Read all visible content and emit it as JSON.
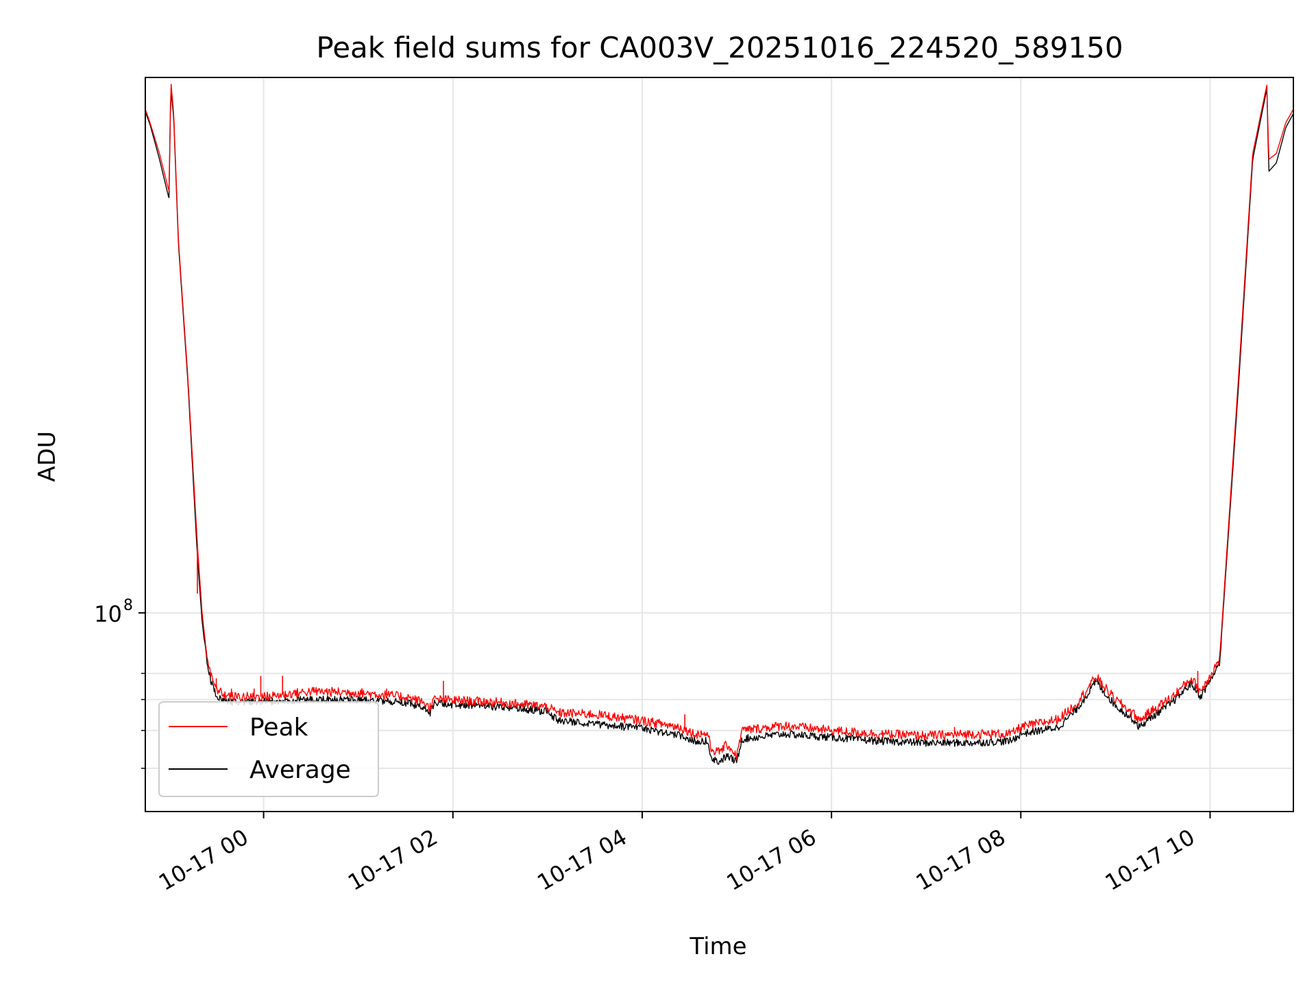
{
  "chart_data": {
    "type": "line",
    "title": "Peak field sums for CA003V_20251016_224520_589150",
    "xlabel": "Time",
    "ylabel": "ADU",
    "yscale": "log",
    "ylim": [
      31000000.0,
      2350000000.0
    ],
    "xlim_hours": [
      -1.25,
      10.88
    ],
    "grid": true,
    "legend_position": "lower-left",
    "x_ticks": [
      {
        "hour": 0,
        "label": "10-17 00"
      },
      {
        "hour": 2,
        "label": "10-17 02"
      },
      {
        "hour": 4,
        "label": "10-17 04"
      },
      {
        "hour": 6,
        "label": "10-17 06"
      },
      {
        "hour": 8,
        "label": "10-17 08"
      },
      {
        "hour": 10,
        "label": "10-17 10"
      }
    ],
    "y_ticks": [
      {
        "value": 100000000,
        "base": "10",
        "exponent": "8"
      }
    ],
    "y_minor_ticks": [
      40000000,
      50000000,
      60000000,
      70000000
    ],
    "series": [
      {
        "name": "Peak",
        "color": "#ff0000",
        "points": [
          [
            -1.25,
            1950000000.0
          ],
          [
            -1.2,
            1800000000.0
          ],
          [
            -1.1,
            1500000000.0
          ],
          [
            -1.0,
            1200000000.0
          ],
          [
            -0.98,
            2300000000.0
          ],
          [
            -0.95,
            1900000000.0
          ],
          [
            -0.9,
            900000000.0
          ],
          [
            -0.8,
            400000000.0
          ],
          [
            -0.7,
            150000000.0
          ],
          [
            -0.65,
            100000000.0
          ],
          [
            -0.6,
            78000000.0
          ],
          [
            -0.55,
            68000000.0
          ],
          [
            -0.5,
            64000000.0
          ],
          [
            -0.45,
            62500000.0
          ],
          [
            -0.4,
            61500000.0
          ],
          [
            -0.3,
            61000000.0
          ],
          [
            -0.2,
            61000000.0
          ],
          [
            0.0,
            61000000.0
          ],
          [
            0.5,
            63000000.0
          ],
          [
            1.0,
            62500000.0
          ],
          [
            1.5,
            61000000.0
          ],
          [
            1.7,
            59000000.0
          ],
          [
            1.75,
            57000000.0
          ],
          [
            1.8,
            60000000.0
          ],
          [
            1.85,
            60000000.0
          ],
          [
            2.5,
            59000000.0
          ],
          [
            3.0,
            57500000.0
          ],
          [
            3.1,
            55500000.0
          ],
          [
            3.5,
            55000000.0
          ],
          [
            4.0,
            53000000.0
          ],
          [
            4.4,
            51000000.0
          ],
          [
            4.55,
            49000000.0
          ],
          [
            4.7,
            49000000.0
          ],
          [
            4.72,
            45000000.0
          ],
          [
            4.8,
            44000000.0
          ],
          [
            4.9,
            46000000.0
          ],
          [
            5.0,
            43000000.0
          ],
          [
            5.05,
            50000000.0
          ],
          [
            5.5,
            51500000.0
          ],
          [
            6.0,
            50000000.0
          ],
          [
            6.5,
            49000000.0
          ],
          [
            7.0,
            48500000.0
          ],
          [
            7.5,
            49000000.0
          ],
          [
            7.9,
            49000000.0
          ],
          [
            8.0,
            51000000.0
          ],
          [
            8.4,
            53500000.0
          ],
          [
            8.6,
            59000000.0
          ],
          [
            8.8,
            69000000.0
          ],
          [
            8.85,
            66000000.0
          ],
          [
            9.0,
            60000000.0
          ],
          [
            9.2,
            55000000.0
          ],
          [
            9.25,
            53000000.0
          ],
          [
            9.4,
            56500000.0
          ],
          [
            9.6,
            61000000.0
          ],
          [
            9.8,
            68000000.0
          ],
          [
            9.9,
            63000000.0
          ],
          [
            9.95,
            66000000.0
          ],
          [
            10.1,
            76000000.0
          ],
          [
            10.3,
            400000000.0
          ],
          [
            10.45,
            1500000000.0
          ],
          [
            10.6,
            2250000000.0
          ],
          [
            10.62,
            1450000000.0
          ],
          [
            10.7,
            1500000000.0
          ],
          [
            10.8,
            1800000000.0
          ],
          [
            10.88,
            1950000000.0
          ]
        ]
      },
      {
        "name": "Average",
        "color": "#000000",
        "points": [
          [
            -1.25,
            1920000000.0
          ],
          [
            -1.2,
            1780000000.0
          ],
          [
            -1.1,
            1450000000.0
          ],
          [
            -1.0,
            1150000000.0
          ],
          [
            -0.98,
            2200000000.0
          ],
          [
            -0.95,
            1850000000.0
          ],
          [
            -0.9,
            880000000.0
          ],
          [
            -0.8,
            390000000.0
          ],
          [
            -0.7,
            140000000.0
          ],
          [
            -0.65,
            95000000.0
          ],
          [
            -0.6,
            75000000.0
          ],
          [
            -0.55,
            66000000.0
          ],
          [
            -0.5,
            61500000.0
          ],
          [
            -0.45,
            60000000.0
          ],
          [
            -0.4,
            59500000.0
          ],
          [
            -0.3,
            59200000.0
          ],
          [
            -0.2,
            59200000.0
          ],
          [
            0.0,
            59300000.0
          ],
          [
            0.5,
            60000000.0
          ],
          [
            1.0,
            60000000.0
          ],
          [
            1.5,
            59000000.0
          ],
          [
            1.7,
            57000000.0
          ],
          [
            1.75,
            55000000.0
          ],
          [
            1.8,
            58500000.0
          ],
          [
            1.85,
            58500000.0
          ],
          [
            2.5,
            57500000.0
          ],
          [
            3.0,
            56000000.0
          ],
          [
            3.1,
            53000000.0
          ],
          [
            3.5,
            52000000.0
          ],
          [
            4.0,
            50500000.0
          ],
          [
            4.4,
            48500000.0
          ],
          [
            4.55,
            47000000.0
          ],
          [
            4.7,
            47000000.0
          ],
          [
            4.72,
            43000000.0
          ],
          [
            4.8,
            41500000.0
          ],
          [
            4.9,
            43000000.0
          ],
          [
            5.0,
            41500000.0
          ],
          [
            5.05,
            47500000.0
          ],
          [
            5.5,
            49000000.0
          ],
          [
            6.0,
            48000000.0
          ],
          [
            6.5,
            47000000.0
          ],
          [
            7.0,
            46500000.0
          ],
          [
            7.5,
            46500000.0
          ],
          [
            7.9,
            47000000.0
          ],
          [
            8.0,
            49000000.0
          ],
          [
            8.4,
            51000000.0
          ],
          [
            8.6,
            57000000.0
          ],
          [
            8.8,
            67000000.0
          ],
          [
            8.85,
            64000000.0
          ],
          [
            9.0,
            58000000.0
          ],
          [
            9.2,
            53000000.0
          ],
          [
            9.25,
            51000000.0
          ],
          [
            9.4,
            54500000.0
          ],
          [
            9.6,
            59000000.0
          ],
          [
            9.8,
            66000000.0
          ],
          [
            9.9,
            61000000.0
          ],
          [
            9.95,
            64000000.0
          ],
          [
            10.1,
            74000000.0
          ],
          [
            10.3,
            380000000.0
          ],
          [
            10.45,
            1450000000.0
          ],
          [
            10.6,
            2200000000.0
          ],
          [
            10.62,
            1350000000.0
          ],
          [
            10.7,
            1420000000.0
          ],
          [
            10.8,
            1750000000.0
          ],
          [
            10.88,
            1900000000.0
          ]
        ]
      }
    ],
    "spikes": [
      {
        "series": "Peak",
        "hour": -0.7,
        "value": 112000000.0
      },
      {
        "series": "Peak",
        "hour": -0.5,
        "value": 68000000.0
      },
      {
        "series": "Peak",
        "hour": -0.34,
        "value": 64000000.0
      },
      {
        "series": "Peak",
        "hour": -0.03,
        "value": 69000000.0
      },
      {
        "series": "Peak",
        "hour": 0.2,
        "value": 69000000.0
      },
      {
        "series": "Peak",
        "hour": 1.3,
        "value": 64000000.0
      },
      {
        "series": "Peak",
        "hour": -0.1,
        "value": 64000000.0
      },
      {
        "series": "Peak",
        "hour": 1.9,
        "value": 67000000.0
      },
      {
        "series": "Peak",
        "hour": 4.45,
        "value": 55000000.0
      },
      {
        "series": "Peak",
        "hour": 4.62,
        "value": 50000000.0
      },
      {
        "series": "Peak",
        "hour": 7.3,
        "value": 51000000.0
      },
      {
        "series": "Peak",
        "hour": 9.87,
        "value": 71000000.0
      },
      {
        "series": "Peak",
        "hour": 10.05,
        "value": 74000000.0
      }
    ]
  },
  "legend": {
    "items": [
      {
        "label": "Peak",
        "color": "#ff0000"
      },
      {
        "label": "Average",
        "color": "#000000"
      }
    ]
  }
}
